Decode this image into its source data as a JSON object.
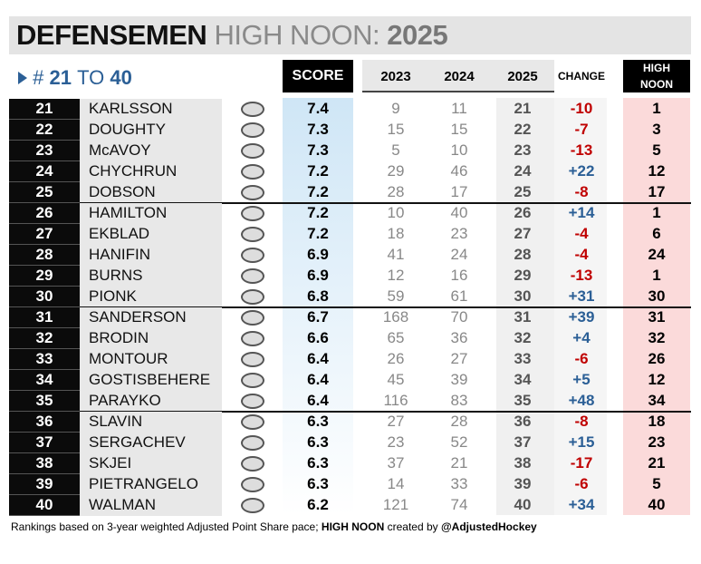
{
  "header": {
    "title": "DEFENSEMEN",
    "subtitle_light": "HIGH NOON:",
    "year": "2025"
  },
  "range": {
    "hash": "#",
    "from": "21",
    "to_word": "TO",
    "to": "40"
  },
  "columns": {
    "score": "SCORE",
    "y2023": "2023",
    "y2024": "2024",
    "y2025": "2025",
    "change": "CHANGE",
    "high_noon": "HIGH NOON"
  },
  "table": {
    "rows": [
      {
        "rank": 21,
        "name": "KARLSSON",
        "score": 7.4,
        "y2023": 9,
        "y2024": 11,
        "y2025": 21,
        "change": "-10",
        "high_noon": 1
      },
      {
        "rank": 22,
        "name": "DOUGHTY",
        "score": 7.3,
        "y2023": 15,
        "y2024": 15,
        "y2025": 22,
        "change": "-7",
        "high_noon": 3
      },
      {
        "rank": 23,
        "name": "McAVOY",
        "score": 7.3,
        "y2023": 5,
        "y2024": 10,
        "y2025": 23,
        "change": "-13",
        "high_noon": 5
      },
      {
        "rank": 24,
        "name": "CHYCHRUN",
        "score": 7.2,
        "y2023": 29,
        "y2024": 46,
        "y2025": 24,
        "change": "+22",
        "high_noon": 12
      },
      {
        "rank": 25,
        "name": "DOBSON",
        "score": 7.2,
        "y2023": 28,
        "y2024": 17,
        "y2025": 25,
        "change": "-8",
        "high_noon": 17
      },
      {
        "rank": 26,
        "name": "HAMILTON",
        "score": 7.2,
        "y2023": 10,
        "y2024": 40,
        "y2025": 26,
        "change": "+14",
        "high_noon": 1
      },
      {
        "rank": 27,
        "name": "EKBLAD",
        "score": 7.2,
        "y2023": 18,
        "y2024": 23,
        "y2025": 27,
        "change": "-4",
        "high_noon": 6
      },
      {
        "rank": 28,
        "name": "HANIFIN",
        "score": 6.9,
        "y2023": 41,
        "y2024": 24,
        "y2025": 28,
        "change": "-4",
        "high_noon": 24
      },
      {
        "rank": 29,
        "name": "BURNS",
        "score": 6.9,
        "y2023": 12,
        "y2024": 16,
        "y2025": 29,
        "change": "-13",
        "high_noon": 1
      },
      {
        "rank": 30,
        "name": "PIONK",
        "score": 6.8,
        "y2023": 59,
        "y2024": 61,
        "y2025": 30,
        "change": "+31",
        "high_noon": 30
      },
      {
        "rank": 31,
        "name": "SANDERSON",
        "score": 6.7,
        "y2023": 168,
        "y2024": 70,
        "y2025": 31,
        "change": "+39",
        "high_noon": 31
      },
      {
        "rank": 32,
        "name": "BRODIN",
        "score": 6.6,
        "y2023": 65,
        "y2024": 36,
        "y2025": 32,
        "change": "+4",
        "high_noon": 32
      },
      {
        "rank": 33,
        "name": "MONTOUR",
        "score": 6.4,
        "y2023": 26,
        "y2024": 27,
        "y2025": 33,
        "change": "-6",
        "high_noon": 26
      },
      {
        "rank": 34,
        "name": "GOSTISBEHERE",
        "score": 6.4,
        "y2023": 45,
        "y2024": 39,
        "y2025": 34,
        "change": "+5",
        "high_noon": 12
      },
      {
        "rank": 35,
        "name": "PARAYKO",
        "score": 6.4,
        "y2023": 116,
        "y2024": 83,
        "y2025": 35,
        "change": "+48",
        "high_noon": 34
      },
      {
        "rank": 36,
        "name": "SLAVIN",
        "score": 6.3,
        "y2023": 27,
        "y2024": 28,
        "y2025": 36,
        "change": "-8",
        "high_noon": 18
      },
      {
        "rank": 37,
        "name": "SERGACHEV",
        "score": 6.3,
        "y2023": 23,
        "y2024": 52,
        "y2025": 37,
        "change": "+15",
        "high_noon": 23
      },
      {
        "rank": 38,
        "name": "SKJEI",
        "score": 6.3,
        "y2023": 37,
        "y2024": 21,
        "y2025": 38,
        "change": "-17",
        "high_noon": 21
      },
      {
        "rank": 39,
        "name": "PIETRANGELO",
        "score": 6.3,
        "y2023": 14,
        "y2024": 33,
        "y2025": 39,
        "change": "-6",
        "high_noon": 5
      },
      {
        "rank": 40,
        "name": "WALMAN",
        "score": 6.2,
        "y2023": 121,
        "y2024": 74,
        "y2025": 40,
        "change": "+34",
        "high_noon": 40
      }
    ]
  },
  "footer": {
    "text1": "Rankings based on 3-year weighted Adjusted Point Share pace;",
    "bold1": "HIGH NOON",
    "text2": "created by",
    "bold2": "@AdjustedHockey"
  }
}
